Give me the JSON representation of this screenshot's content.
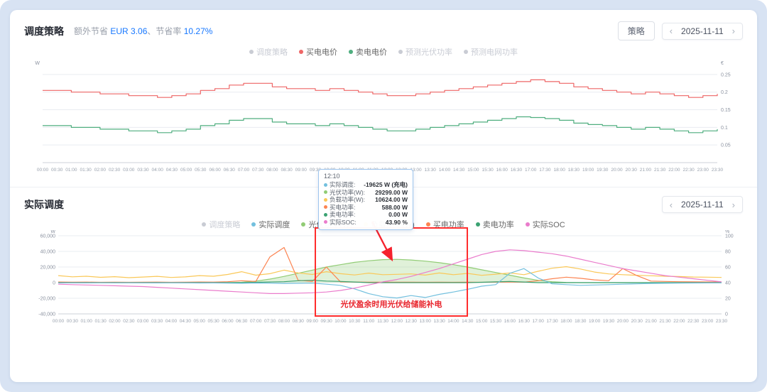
{
  "strategy_panel": {
    "title": "调度策略",
    "saving_prefix": "额外节省 ",
    "saving_value": "EUR 3.06",
    "rate_prefix": "、节省率 ",
    "rate_value": "10.27%",
    "action_button": "策略",
    "date": "2025-11-11",
    "prev_icon": "‹",
    "next_icon": "›",
    "legend": [
      {
        "label": "调度策略",
        "color": "#c9ccd4",
        "active": false
      },
      {
        "label": "买电电价",
        "color": "#ee6666",
        "active": true
      },
      {
        "label": "卖电电价",
        "color": "#4fae7f",
        "active": true
      },
      {
        "label": "预测光伏功率",
        "color": "#c9ccd4",
        "active": false
      },
      {
        "label": "预测电网功率",
        "color": "#c9ccd4",
        "active": false
      }
    ]
  },
  "actual_panel": {
    "title": "实际调度",
    "date": "2025-11-11",
    "prev_icon": "‹",
    "next_icon": "›",
    "annotation": "光伏盈余时用光伏给储能补电",
    "legend": [
      {
        "label": "调度策略",
        "color": "#c9ccd4",
        "active": false
      },
      {
        "label": "实际调度",
        "color": "#73c0de",
        "active": true
      },
      {
        "label": "光伏功率(W)",
        "color": "#91cc75",
        "active": true
      },
      {
        "label": "负载功率(W)",
        "color": "#fac858",
        "active": true
      },
      {
        "label": "买电功率",
        "color": "#fc8452",
        "active": true
      },
      {
        "label": "卖电功率",
        "color": "#3ba272",
        "active": true
      },
      {
        "label": "实际SOC",
        "color": "#ea7ccc",
        "active": true
      }
    ]
  },
  "tooltip": {
    "time": "12:10",
    "rows": [
      {
        "label": "实际调度:",
        "value": "-19625 W (充电)",
        "color": "#73c0de"
      },
      {
        "label": "光伏功率(W):",
        "value": "29299.00 W",
        "color": "#91cc75"
      },
      {
        "label": "负载功率(W):",
        "value": "10624.00 W",
        "color": "#fac858"
      },
      {
        "label": "买电功率:",
        "value": "588.00 W",
        "color": "#fc8452"
      },
      {
        "label": "卖电功率:",
        "value": "0.00 W",
        "color": "#3ba272"
      },
      {
        "label": "实际SOC:",
        "value": "43.90 %",
        "color": "#ea7ccc"
      }
    ]
  },
  "chart_data": [
    {
      "type": "line",
      "title": "调度策略",
      "ylabel_left": "W",
      "ylabel_right": "€",
      "right_lim": [
        0,
        0.27
      ],
      "right_ticks": [
        0.05,
        0.1,
        0.15,
        0.2,
        0.25
      ],
      "legend_position": "top-center",
      "grid": true,
      "x": [
        "00:00",
        "00:30",
        "01:00",
        "01:30",
        "02:00",
        "02:30",
        "03:00",
        "03:30",
        "04:00",
        "04:30",
        "05:00",
        "05:30",
        "06:00",
        "06:30",
        "07:00",
        "07:30",
        "08:00",
        "08:30",
        "09:00",
        "09:30",
        "10:00",
        "10:30",
        "11:00",
        "11:30",
        "12:00",
        "12:30",
        "13:00",
        "13:30",
        "14:00",
        "14:30",
        "15:00",
        "15:30",
        "16:00",
        "16:30",
        "17:00",
        "17:30",
        "18:00",
        "18:30",
        "19:00",
        "19:30",
        "20:00",
        "20:30",
        "21:00",
        "21:30",
        "22:00",
        "22:30",
        "23:00",
        "23:30"
      ],
      "series": [
        {
          "name": "买电电价",
          "color": "#ee6666",
          "axis": "right",
          "style": "step",
          "values": [
            0.205,
            0.205,
            0.2,
            0.2,
            0.195,
            0.195,
            0.19,
            0.19,
            0.185,
            0.19,
            0.195,
            0.205,
            0.21,
            0.22,
            0.225,
            0.225,
            0.215,
            0.21,
            0.21,
            0.205,
            0.21,
            0.205,
            0.2,
            0.195,
            0.19,
            0.19,
            0.195,
            0.2,
            0.205,
            0.21,
            0.215,
            0.22,
            0.225,
            0.23,
            0.235,
            0.23,
            0.225,
            0.215,
            0.21,
            0.205,
            0.2,
            0.195,
            0.2,
            0.195,
            0.19,
            0.185,
            0.19,
            0.195
          ]
        },
        {
          "name": "卖电电价",
          "color": "#4fae7f",
          "axis": "right",
          "style": "step",
          "values": [
            0.105,
            0.105,
            0.1,
            0.1,
            0.095,
            0.095,
            0.09,
            0.09,
            0.085,
            0.09,
            0.095,
            0.105,
            0.11,
            0.12,
            0.125,
            0.125,
            0.115,
            0.11,
            0.11,
            0.105,
            0.11,
            0.105,
            0.1,
            0.095,
            0.09,
            0.09,
            0.095,
            0.1,
            0.105,
            0.11,
            0.115,
            0.12,
            0.125,
            0.13,
            0.128,
            0.125,
            0.12,
            0.112,
            0.108,
            0.105,
            0.1,
            0.095,
            0.1,
            0.095,
            0.09,
            0.085,
            0.09,
            0.095
          ]
        }
      ]
    },
    {
      "type": "line",
      "title": "实际调度",
      "ylabel_left": "W",
      "ylabel_right": "%",
      "left_lim": [
        -40000,
        60000
      ],
      "left_ticks": [
        -40000,
        -20000,
        0,
        20000,
        40000,
        60000
      ],
      "right_lim": [
        0,
        100
      ],
      "right_ticks": [
        0,
        20,
        40,
        60,
        80,
        100
      ],
      "legend_position": "top-center",
      "grid": true,
      "x": [
        "00:00",
        "00:30",
        "01:00",
        "01:30",
        "02:00",
        "02:30",
        "03:00",
        "03:30",
        "04:00",
        "04:30",
        "05:00",
        "05:30",
        "06:00",
        "06:30",
        "07:00",
        "07:30",
        "08:00",
        "08:30",
        "09:00",
        "09:30",
        "10:00",
        "10:30",
        "11:00",
        "11:30",
        "12:00",
        "12:30",
        "13:00",
        "13:30",
        "14:00",
        "14:30",
        "15:00",
        "15:30",
        "16:00",
        "16:30",
        "17:00",
        "17:30",
        "18:00",
        "18:30",
        "19:00",
        "19:30",
        "20:00",
        "20:30",
        "21:00",
        "21:30",
        "22:00",
        "22:30",
        "23:00",
        "23:30"
      ],
      "series": [
        {
          "name": "光伏功率(W)",
          "color": "#91cc75",
          "axis": "left",
          "style": "line",
          "area": true,
          "values": [
            0,
            0,
            0,
            0,
            0,
            0,
            0,
            0,
            0,
            0,
            0,
            0,
            0,
            500,
            2000,
            4500,
            8000,
            12000,
            16000,
            20000,
            23000,
            26000,
            28000,
            29500,
            29800,
            29000,
            27500,
            25500,
            23000,
            20000,
            16500,
            13000,
            9500,
            6000,
            3000,
            1200,
            300,
            0,
            0,
            0,
            0,
            0,
            0,
            0,
            0,
            0,
            0,
            0
          ]
        },
        {
          "name": "负载功率(W)",
          "color": "#fac858",
          "axis": "left",
          "style": "line",
          "values": [
            9000,
            7500,
            8200,
            6800,
            7600,
            6400,
            7200,
            8100,
            6600,
            7400,
            9000,
            8200,
            10500,
            14000,
            9500,
            11500,
            16000,
            12500,
            10500,
            14000,
            11500,
            9800,
            12200,
            10200,
            10624,
            11200,
            9600,
            12400,
            10200,
            11800,
            9400,
            10800,
            12400,
            10200,
            14500,
            18500,
            20500,
            17500,
            13500,
            11200,
            10200,
            9400,
            8800,
            8200,
            7800,
            7200,
            7000,
            6600
          ]
        },
        {
          "name": "买电功率",
          "color": "#fc8452",
          "axis": "left",
          "style": "line",
          "values": [
            800,
            600,
            700,
            500,
            600,
            500,
            600,
            700,
            500,
            600,
            800,
            700,
            1200,
            2500,
            1500,
            33000,
            45000,
            3000,
            1500,
            20000,
            1000,
            700,
            600,
            588,
            588,
            600,
            500,
            600,
            500,
            600,
            500,
            600,
            700,
            600,
            2500,
            5000,
            7000,
            5500,
            3500,
            2500,
            18000,
            9000,
            2000,
            1500,
            1200,
            1000,
            900,
            800
          ]
        },
        {
          "name": "卖电功率",
          "color": "#3ba272",
          "axis": "left",
          "style": "line",
          "values": [
            0,
            0,
            0,
            0,
            0,
            0,
            0,
            0,
            0,
            0,
            0,
            0,
            0,
            0,
            500,
            800,
            1200,
            2500,
            3000,
            2000,
            1500,
            800,
            0,
            0,
            0,
            0,
            0,
            0,
            0,
            0,
            500,
            1000,
            1500,
            800,
            0,
            0,
            0,
            0,
            0,
            0,
            0,
            0,
            0,
            0,
            0,
            0,
            0,
            0
          ]
        },
        {
          "name": "实际调度",
          "color": "#73c0de",
          "axis": "left",
          "style": "line",
          "values": [
            -500,
            -300,
            -400,
            -200,
            -300,
            -200,
            -300,
            -400,
            -200,
            -300,
            -500,
            -400,
            -600,
            -800,
            -500,
            -700,
            -1000,
            -800,
            -600,
            -2000,
            -3500,
            -8000,
            -14000,
            -18000,
            -19625,
            -16500,
            -19000,
            -15000,
            -12000,
            -8500,
            -4500,
            -2500,
            12000,
            18000,
            6000,
            -1500,
            -2500,
            -3500,
            -3000,
            -2500,
            -2000,
            -1500,
            -1000,
            -800,
            -600,
            -500,
            -400,
            -300
          ]
        },
        {
          "name": "实际SOC",
          "color": "#ea7ccc",
          "axis": "right",
          "style": "line",
          "values": [
            38,
            37.5,
            37,
            36.5,
            36,
            35.5,
            35,
            34,
            33,
            32,
            31,
            30,
            29,
            28,
            27,
            26,
            26,
            26.5,
            27,
            28,
            30,
            33,
            37,
            41,
            44,
            48,
            53,
            58,
            64,
            70,
            76,
            80,
            82,
            81,
            79,
            77,
            74,
            70,
            66,
            62,
            58,
            55,
            52,
            49,
            47,
            45,
            43,
            41
          ]
        }
      ]
    }
  ]
}
